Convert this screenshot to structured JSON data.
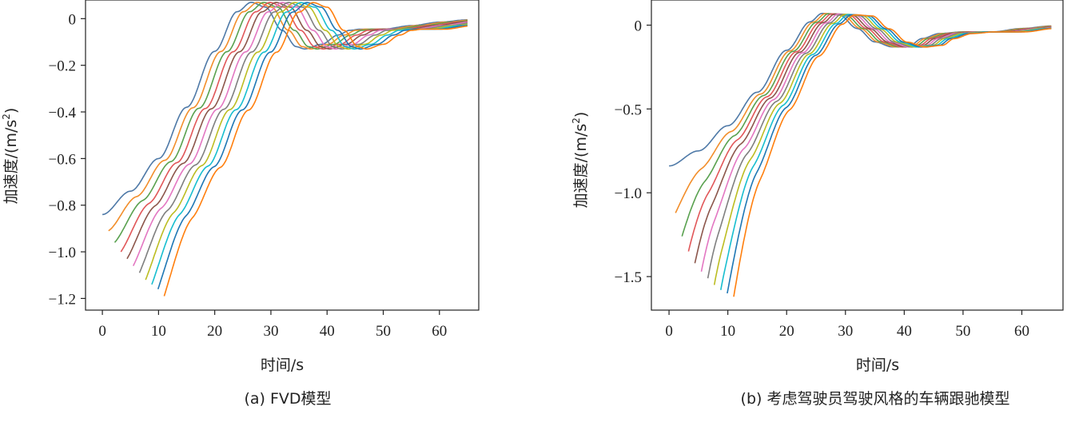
{
  "colors": [
    "#4e79a7",
    "#f28e2b",
    "#59a14f",
    "#e15759",
    "#8c564b",
    "#e377c2",
    "#7f7f7f",
    "#bcbd22",
    "#17becf",
    "#1f77b4",
    "#ff7f0e",
    "#2ca02c",
    "#d62728"
  ],
  "chart_data": [
    {
      "type": "line",
      "caption": "(a) FVD模型",
      "xlabel": "时间/s",
      "ylabel_main": "加速度/(m/s",
      "ylabel_sup": "2",
      "ylabel_close": ")",
      "xlim": [
        -3,
        67
      ],
      "ylim": [
        -1.25,
        0.08
      ],
      "xticks": [
        0,
        10,
        20,
        30,
        40,
        50,
        60
      ],
      "xtick_labels": [
        "0",
        "10",
        "20",
        "30",
        "40",
        "50",
        "60"
      ],
      "yticks": [
        0,
        -0.2,
        -0.4,
        -0.6,
        -0.8,
        -1.0,
        -1.2
      ],
      "ytick_labels": [
        "0",
        "−0.2",
        "−0.4",
        "−0.6",
        "−0.8",
        "−1.0",
        "−1.2"
      ],
      "x_end": 65,
      "n_series": 11,
      "series_start_x": [
        0,
        1.1,
        2.2,
        3.3,
        4.4,
        5.5,
        6.6,
        7.7,
        8.8,
        9.9,
        11.0
      ],
      "series_start_y": [
        -0.84,
        -0.91,
        -0.96,
        -1.0,
        -1.03,
        -1.06,
        -1.09,
        -1.12,
        -1.14,
        -1.16,
        -1.19
      ],
      "series_x_offset": 1.1,
      "base_curve": [
        [
          0,
          -0.84
        ],
        [
          5,
          -0.74
        ],
        [
          10,
          -0.6
        ],
        [
          15,
          -0.38
        ],
        [
          20,
          -0.14
        ],
        [
          24,
          0.03
        ],
        [
          26.5,
          0.07
        ],
        [
          29,
          0.05
        ],
        [
          32,
          -0.05
        ],
        [
          34.5,
          -0.12
        ],
        [
          36,
          -0.13
        ],
        [
          39,
          -0.11
        ],
        [
          42,
          -0.07
        ],
        [
          44,
          -0.05
        ],
        [
          46,
          -0.045
        ],
        [
          50,
          -0.045
        ],
        [
          55,
          -0.03
        ],
        [
          60,
          -0.015
        ],
        [
          65,
          -0.005
        ]
      ]
    },
    {
      "type": "line",
      "caption": "(b) 考虑驾驶员驾驶风格的车辆跟驰模型",
      "xlabel": "时间/s",
      "ylabel_main": "加速度/(m/s",
      "ylabel_sup": "2",
      "ylabel_close": ")",
      "xlim": [
        -3,
        67
      ],
      "ylim": [
        -1.7,
        0.15
      ],
      "xticks": [
        0,
        10,
        20,
        30,
        40,
        50,
        60
      ],
      "xtick_labels": [
        "0",
        "10",
        "20",
        "30",
        "40",
        "50",
        "60"
      ],
      "yticks": [
        0,
        -0.5,
        -1.0,
        -1.5
      ],
      "ytick_labels": [
        "0",
        "−0.5",
        "−1.0",
        "−1.5"
      ],
      "x_end": 65,
      "n_series": 11,
      "series_start_x": [
        0,
        1.1,
        2.2,
        3.3,
        4.4,
        5.5,
        6.6,
        7.7,
        8.8,
        9.9,
        11.0
      ],
      "series_start_y": [
        -0.84,
        -1.12,
        -1.26,
        -1.35,
        -1.42,
        -1.47,
        -1.51,
        -1.55,
        -1.58,
        -1.6,
        -1.62
      ],
      "series_x_offset": 0.55,
      "base_curve": [
        [
          0,
          -0.84
        ],
        [
          5,
          -0.75
        ],
        [
          10,
          -0.6
        ],
        [
          15,
          -0.4
        ],
        [
          20,
          -0.15
        ],
        [
          24,
          0.02
        ],
        [
          26,
          0.07
        ],
        [
          29,
          0.06
        ],
        [
          32,
          -0.02
        ],
        [
          35,
          -0.1
        ],
        [
          38,
          -0.13
        ],
        [
          41,
          -0.12
        ],
        [
          43,
          -0.08
        ],
        [
          46,
          -0.05
        ],
        [
          50,
          -0.04
        ],
        [
          55,
          -0.04
        ],
        [
          60,
          -0.02
        ],
        [
          65,
          -0.005
        ]
      ]
    }
  ]
}
